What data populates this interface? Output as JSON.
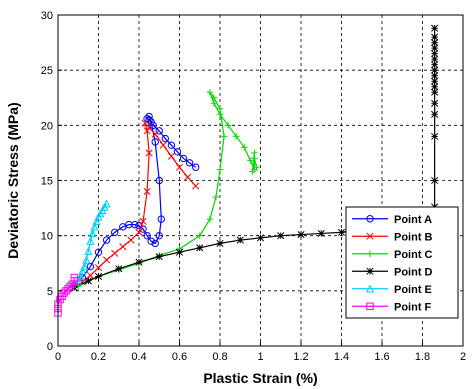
{
  "chart_data": {
    "type": "line",
    "xlabel": "Plastic Strain (%)",
    "ylabel": "Deviatoric Stress (MPa)",
    "xlim": [
      0,
      2
    ],
    "ylim": [
      0,
      30
    ],
    "xticks": [
      0,
      0.2,
      0.4,
      0.6,
      0.8,
      1,
      1.2,
      1.4,
      1.6,
      1.8,
      2
    ],
    "xtick_labels": [
      "0",
      "0.2",
      "0.4",
      "0.6",
      "0.8",
      "1",
      "1.2",
      "1.4",
      "1.6",
      "1.8",
      "2"
    ],
    "yticks": [
      0,
      5,
      10,
      15,
      20,
      25,
      30
    ],
    "ytick_labels": [
      "0",
      "5",
      "10",
      "15",
      "20",
      "25",
      "30"
    ],
    "grid": true,
    "legend_position": "bottom-right",
    "series": [
      {
        "name": "Point A",
        "color": "#0000ff",
        "marker": "circle",
        "x": [
          0.08,
          0.12,
          0.16,
          0.2,
          0.24,
          0.28,
          0.32,
          0.35,
          0.38,
          0.4,
          0.42,
          0.44,
          0.46,
          0.48,
          0.5,
          0.51,
          0.5,
          0.48,
          0.46,
          0.45,
          0.44,
          0.45,
          0.47,
          0.5,
          0.53,
          0.56,
          0.59,
          0.62,
          0.65,
          0.68
        ],
        "y": [
          5.5,
          6.2,
          7.2,
          8.5,
          9.6,
          10.3,
          10.8,
          11,
          11,
          10.9,
          10.6,
          10,
          9.5,
          9.3,
          10,
          11.5,
          15,
          18.5,
          20.3,
          20.8,
          20.6,
          20.5,
          20,
          19.5,
          18.8,
          18.2,
          17.6,
          17,
          16.6,
          16.2
        ]
      },
      {
        "name": "Point B",
        "color": "#ff0000",
        "marker": "x",
        "x": [
          0.08,
          0.12,
          0.16,
          0.2,
          0.24,
          0.28,
          0.32,
          0.36,
          0.4,
          0.42,
          0.44,
          0.45,
          0.44,
          0.43,
          0.45,
          0.48,
          0.52,
          0.56,
          0.6,
          0.64,
          0.68
        ],
        "y": [
          5.3,
          5.8,
          6.4,
          7.1,
          7.8,
          8.4,
          9,
          9.6,
          10.3,
          11.3,
          14,
          17.5,
          19.5,
          20.2,
          19.8,
          19.2,
          18.2,
          17.2,
          16.2,
          15.3,
          14.5
        ]
      },
      {
        "name": "Point C",
        "color": "#00dd00",
        "marker": "plus",
        "x": [
          0.1,
          0.2,
          0.3,
          0.4,
          0.5,
          0.6,
          0.7,
          0.75,
          0.78,
          0.8,
          0.82,
          0.8,
          0.77,
          0.75,
          0.77,
          0.8,
          0.84,
          0.88,
          0.92,
          0.95,
          0.97,
          0.97,
          0.96,
          0.97,
          0.98
        ],
        "y": [
          5.4,
          6.3,
          6.9,
          7.5,
          8.2,
          8.8,
          10,
          11.5,
          13.5,
          16,
          19,
          21.5,
          22.5,
          23,
          22,
          21,
          20,
          19,
          18,
          16.8,
          16,
          17.5,
          15.8,
          17,
          16.2
        ]
      },
      {
        "name": "Point D",
        "color": "#000000",
        "marker": "star",
        "x": [
          0.08,
          0.15,
          0.2,
          0.3,
          0.4,
          0.5,
          0.6,
          0.7,
          0.8,
          0.9,
          1,
          1.1,
          1.2,
          1.3,
          1.4,
          1.5,
          1.6,
          1.7,
          1.8,
          1.86,
          1.86,
          1.86,
          1.86,
          1.86,
          1.86,
          1.86,
          1.86,
          1.86,
          1.86,
          1.86,
          1.86,
          1.86,
          1.86,
          1.86,
          1.86,
          1.86
        ],
        "y": [
          5.3,
          5.9,
          6.3,
          7,
          7.6,
          8.1,
          8.5,
          8.9,
          9.3,
          9.6,
          9.8,
          10,
          10.1,
          10.2,
          10.3,
          10.6,
          11,
          11.5,
          12.2,
          12.6,
          15,
          19,
          21,
          22,
          23,
          23.5,
          24,
          24.5,
          25,
          25.5,
          26,
          26.5,
          27,
          27.5,
          28,
          28.8
        ]
      },
      {
        "name": "Point E",
        "color": "#00ccff",
        "marker": "triangle",
        "x": [
          0.1,
          0.11,
          0.12,
          0.13,
          0.14,
          0.15,
          0.16,
          0.17,
          0.18,
          0.19,
          0.2,
          0.21,
          0.22,
          0.23,
          0.24
        ],
        "y": [
          5.8,
          6.3,
          6.8,
          7.2,
          7.8,
          8.6,
          9.5,
          10.2,
          10.8,
          11.3,
          11.7,
          12,
          12.3,
          12.6,
          12.9
        ]
      },
      {
        "name": "Point F",
        "color": "#ff00ff",
        "marker": "square",
        "x": [
          0,
          0,
          0,
          0.01,
          0.02,
          0.03,
          0.04,
          0.05,
          0.06,
          0.07,
          0.08,
          0.08
        ],
        "y": [
          3,
          3.4,
          3.8,
          4.2,
          4.5,
          4.8,
          5,
          5.2,
          5.4,
          5.6,
          5.9,
          6.2
        ]
      }
    ]
  }
}
